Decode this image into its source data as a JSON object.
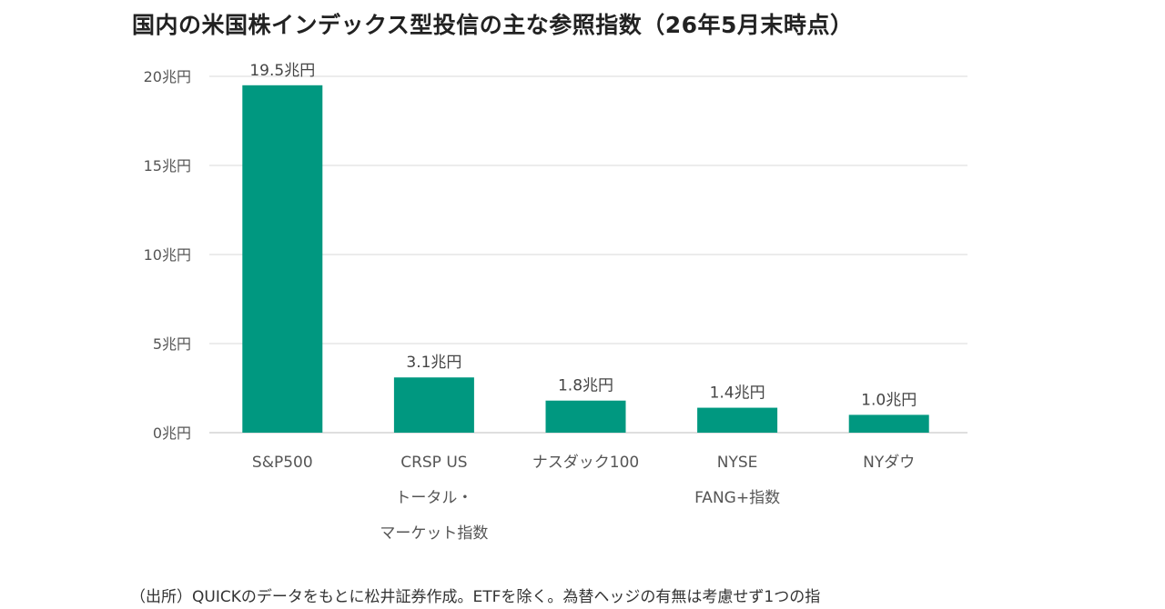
{
  "chart_data": {
    "type": "bar",
    "title": "国内の米国株インデックス型投信の主な参照指数（26年5月末時点）",
    "categories": [
      [
        "S&P500"
      ],
      [
        "CRSP US",
        "トータル・",
        "マーケット指数"
      ],
      [
        "ナスダック100"
      ],
      [
        "NYSE",
        "FANG+指数"
      ],
      [
        "NYダウ"
      ]
    ],
    "values": [
      19.5,
      3.1,
      1.8,
      1.4,
      1.0
    ],
    "data_labels": [
      "19.5兆円",
      "3.1兆円",
      "1.8兆円",
      "1.4兆円",
      "1.0兆円"
    ],
    "y_ticks": [
      0,
      5,
      10,
      15,
      20
    ],
    "y_tick_labels": [
      "0兆円",
      "5兆円",
      "10兆円",
      "15兆円",
      "20兆円"
    ],
    "ylim": [
      0,
      20
    ],
    "grid": true,
    "bar_color": "#009880",
    "source_note": "（出所）QUICKのデータをもとに松井証券作成。ETFを除く。為替ヘッジの有無は考慮せず1つの指"
  }
}
